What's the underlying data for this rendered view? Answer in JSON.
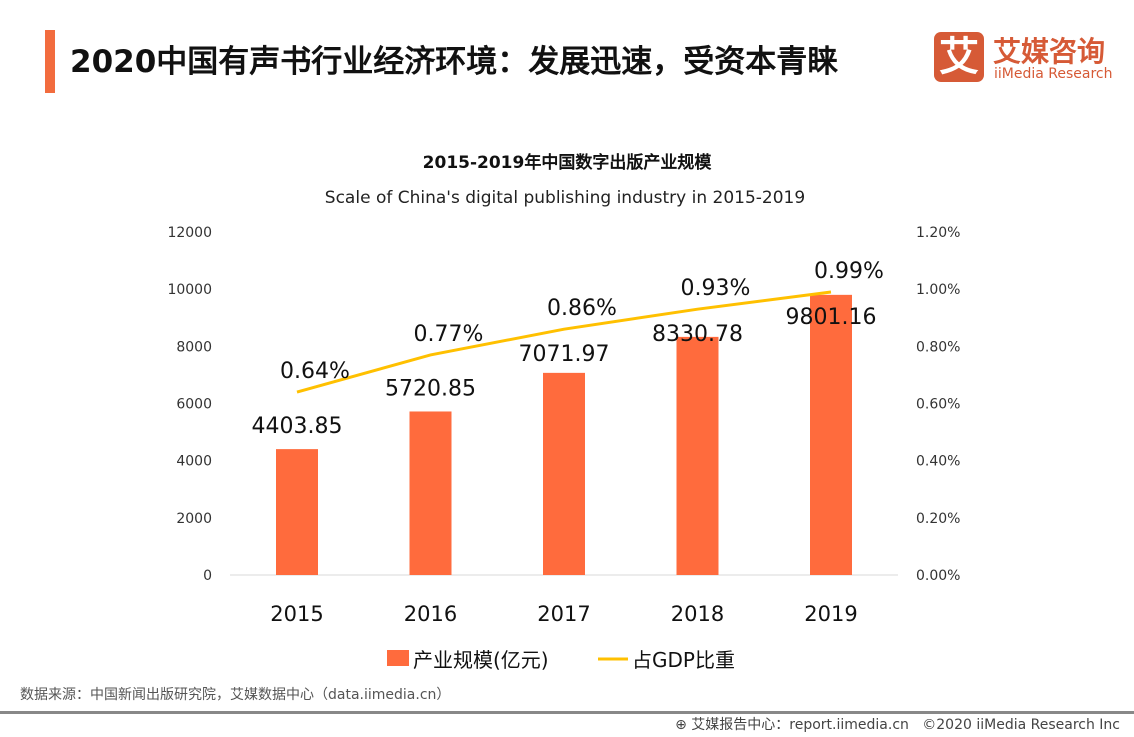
{
  "header": {
    "title": "2020中国有声书行业经济环境：发展迅速，受资本青睐",
    "accent_color": "#f26c3e"
  },
  "logo": {
    "glyph": "艾",
    "cn": "艾媒咨询",
    "en": "iiMedia Research",
    "color": "#d65a36"
  },
  "chart_data": {
    "type": "bar+line",
    "title": "2015-2019年中国数字出版产业规模",
    "subtitle": "Scale of China's digital publishing industry in 2015-2019",
    "categories": [
      "2015",
      "2016",
      "2017",
      "2018",
      "2019"
    ],
    "series": [
      {
        "name": "产业规模(亿元)",
        "type": "bar",
        "axis": "left",
        "color": "#ff6b3d",
        "values": [
          4403.85,
          5720.85,
          7071.97,
          8330.78,
          9801.16
        ],
        "labels": [
          "4403.85",
          "5720.85",
          "7071.97",
          "8330.78",
          "9801.16"
        ]
      },
      {
        "name": "占GDP比重",
        "type": "line",
        "axis": "right",
        "color": "#ffc000",
        "values": [
          0.64,
          0.77,
          0.86,
          0.93,
          0.99
        ],
        "labels": [
          "0.64%",
          "0.77%",
          "0.86%",
          "0.93%",
          "0.99%"
        ]
      }
    ],
    "left_axis": {
      "range": [
        0,
        12000
      ],
      "ticks": [
        "0",
        "2000",
        "4000",
        "6000",
        "8000",
        "10000",
        "12000"
      ]
    },
    "right_axis": {
      "range": [
        0,
        1.2
      ],
      "ticks": [
        "0.00%",
        "0.20%",
        "0.40%",
        "0.60%",
        "0.80%",
        "1.00%",
        "1.20%"
      ]
    },
    "grid": false,
    "legend": "bottom"
  },
  "footer": {
    "source": "数据来源：中国新闻出版研究院，艾媒数据中心（data.iimedia.cn）",
    "report": "艾媒报告中心：report.iimedia.cn",
    "copyright": "©2020  iiMedia Research  Inc"
  }
}
